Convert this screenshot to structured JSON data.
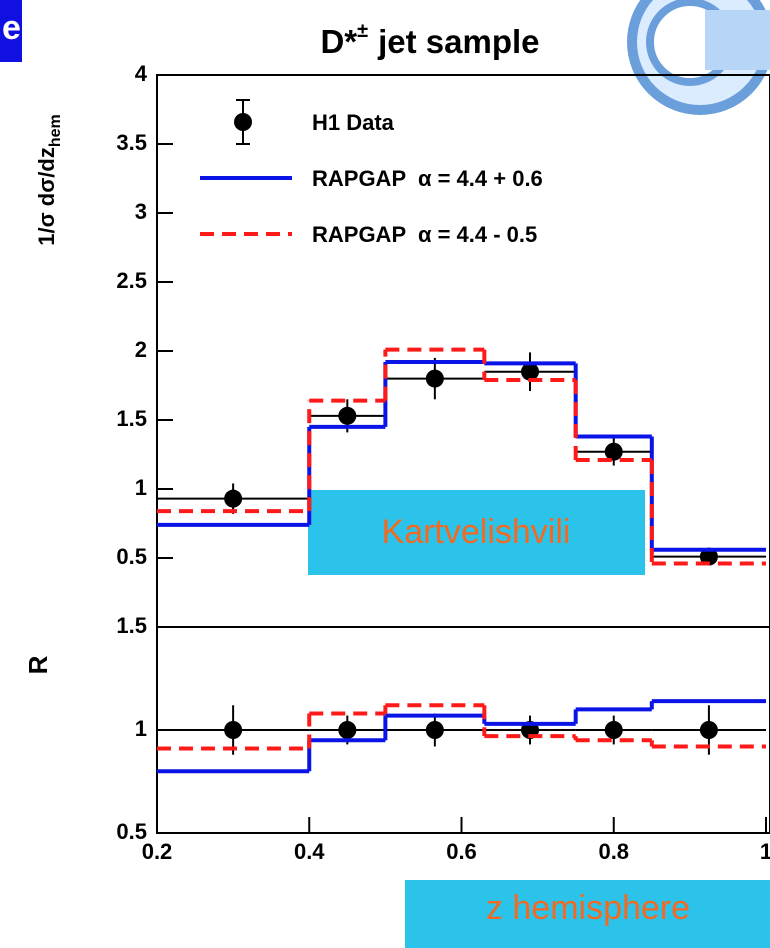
{
  "header": {
    "corner_label": "e"
  },
  "annotations": {
    "model": "Kartvelishvili",
    "x_variable": "z hemisphere"
  },
  "chart_data": [
    {
      "type": "histogram",
      "title": "D*",
      "title_sup": "±",
      "title_rest": "jet sample",
      "ylabel": "1/σ dσ/dz",
      "ylabel_sub": "hem",
      "bins": [
        0.2,
        0.4,
        0.5,
        0.63,
        0.75,
        0.85,
        1.0
      ],
      "x": [
        0.3,
        0.45,
        0.565,
        0.69,
        0.8,
        0.925
      ],
      "xlim": [
        0.2,
        1.0
      ],
      "ylim": [
        0,
        4
      ],
      "yticks": [
        0.5,
        1,
        1.5,
        2,
        2.5,
        3,
        3.5,
        4
      ],
      "series": [
        {
          "name": "H1 Data",
          "color": "#000000",
          "style": "points",
          "values": [
            0.93,
            1.53,
            1.8,
            1.85,
            1.27,
            0.51
          ],
          "errors": [
            0.11,
            0.12,
            0.15,
            0.14,
            0.1,
            0.05
          ]
        },
        {
          "name": "RAPGAP  α = 4.4 + 0.6",
          "color": "#0a14e6",
          "style": "solid",
          "values": [
            0.74,
            1.45,
            1.92,
            1.91,
            1.38,
            0.56
          ]
        },
        {
          "name": "RAPGAP  α = 4.4 - 0.5",
          "color": "#ff1a1a",
          "style": "dashed",
          "values": [
            0.84,
            1.64,
            2.01,
            1.79,
            1.21,
            0.46
          ]
        }
      ]
    },
    {
      "type": "histogram",
      "ylabel": "R",
      "bins": [
        0.2,
        0.4,
        0.5,
        0.63,
        0.75,
        0.85,
        1.0
      ],
      "x": [
        0.3,
        0.45,
        0.565,
        0.69,
        0.8,
        0.925
      ],
      "xlim": [
        0.2,
        1.0
      ],
      "xticks": [
        0.2,
        0.4,
        0.6,
        0.8,
        1
      ],
      "ylim": [
        0.5,
        1.5
      ],
      "yticks": [
        0.5,
        1,
        1.5
      ],
      "series": [
        {
          "color": "#000000",
          "style": "points",
          "values": [
            1,
            1,
            1,
            1,
            1,
            1
          ],
          "errors": [
            0.12,
            0.07,
            0.08,
            0.07,
            0.07,
            0.12
          ]
        },
        {
          "color": "#0a14e6",
          "style": "solid",
          "values": [
            0.8,
            0.95,
            1.07,
            1.03,
            1.1,
            1.14
          ]
        },
        {
          "color": "#ff1a1a",
          "style": "dashed",
          "values": [
            0.91,
            1.08,
            1.12,
            0.97,
            0.95,
            0.92
          ]
        }
      ]
    }
  ]
}
